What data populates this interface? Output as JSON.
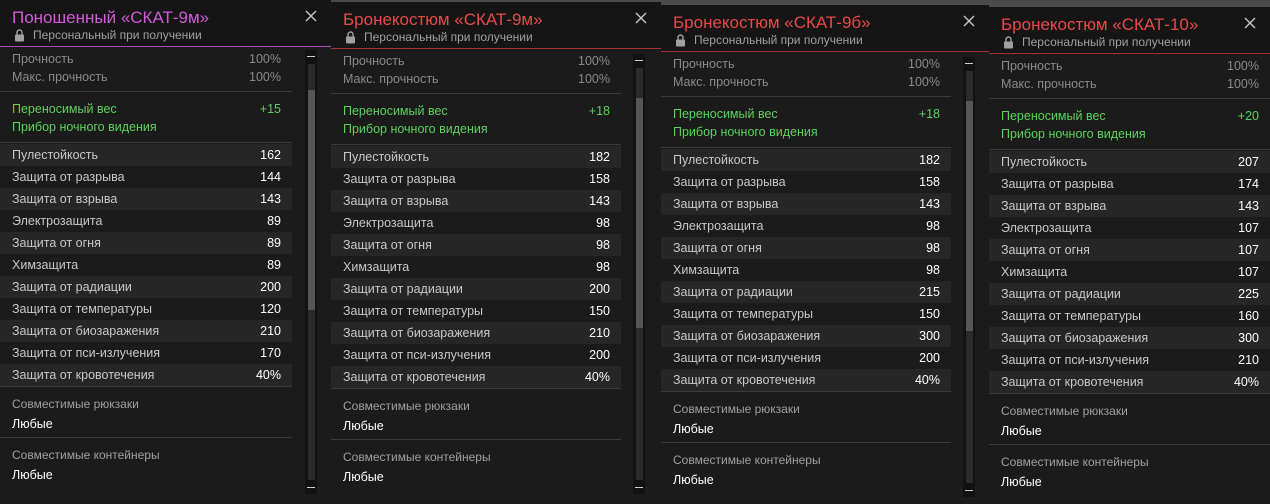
{
  "panels": [
    {
      "title": "Поношенный «СКАТ-9м»",
      "title_color": "#d35ad8",
      "accent_color": "#b04ab8",
      "subtitle": "Персональный при получении",
      "durability": [
        {
          "label": "Прочность",
          "value": "100%"
        },
        {
          "label": "Макс. прочность",
          "value": "100%"
        }
      ],
      "bonuses": [
        {
          "label": "Переносимый вес",
          "value": "+15"
        },
        {
          "label": "Прибор ночного видения",
          "value": ""
        }
      ],
      "stats": [
        {
          "label": "Пулестойкость",
          "value": "162"
        },
        {
          "label": "Защита от разрыва",
          "value": "144"
        },
        {
          "label": "Защита от взрыва",
          "value": "143"
        },
        {
          "label": "Электрозащита",
          "value": "89"
        },
        {
          "label": "Защита от огня",
          "value": "89"
        },
        {
          "label": "Химзащита",
          "value": "89"
        },
        {
          "label": "Защита от радиации",
          "value": "200"
        },
        {
          "label": "Защита от температуры",
          "value": "120"
        },
        {
          "label": "Защита от биозаражения",
          "value": "210"
        },
        {
          "label": "Защита от пси-излучения",
          "value": "170"
        },
        {
          "label": "Защита от кровотечения",
          "value": "40%"
        }
      ],
      "compat": [
        {
          "label": "Совместимые рюкзаки",
          "value": "Любые"
        },
        {
          "label": "Совместимые контейнеры",
          "value": "Любые"
        }
      ]
    },
    {
      "title": "Бронекостюм «СКАТ-9м»",
      "title_color": "#e84a4a",
      "accent_color": "#a03434",
      "subtitle": "Персональный при получении",
      "durability": [
        {
          "label": "Прочность",
          "value": "100%"
        },
        {
          "label": "Макс. прочность",
          "value": "100%"
        }
      ],
      "bonuses": [
        {
          "label": "Переносимый вес",
          "value": "+18"
        },
        {
          "label": "Прибор ночного видения",
          "value": ""
        }
      ],
      "stats": [
        {
          "label": "Пулестойкость",
          "value": "182"
        },
        {
          "label": "Защита от разрыва",
          "value": "158"
        },
        {
          "label": "Защита от взрыва",
          "value": "143"
        },
        {
          "label": "Электрозащита",
          "value": "98"
        },
        {
          "label": "Защита от огня",
          "value": "98"
        },
        {
          "label": "Химзащита",
          "value": "98"
        },
        {
          "label": "Защита от радиации",
          "value": "200"
        },
        {
          "label": "Защита от температуры",
          "value": "150"
        },
        {
          "label": "Защита от биозаражения",
          "value": "210"
        },
        {
          "label": "Защита от пси-излучения",
          "value": "200"
        },
        {
          "label": "Защита от кровотечения",
          "value": "40%"
        }
      ],
      "compat": [
        {
          "label": "Совместимые рюкзаки",
          "value": "Любые"
        },
        {
          "label": "Совместимые контейнеры",
          "value": "Любые"
        }
      ]
    },
    {
      "title": "Бронекостюм «СКАТ-9б»",
      "title_color": "#e84a4a",
      "accent_color": "#a03434",
      "subtitle": "Персональный при получении",
      "durability": [
        {
          "label": "Прочность",
          "value": "100%"
        },
        {
          "label": "Макс. прочность",
          "value": "100%"
        }
      ],
      "bonuses": [
        {
          "label": "Переносимый вес",
          "value": "+18"
        },
        {
          "label": "Прибор ночного видения",
          "value": ""
        }
      ],
      "stats": [
        {
          "label": "Пулестойкость",
          "value": "182"
        },
        {
          "label": "Защита от разрыва",
          "value": "158"
        },
        {
          "label": "Защита от взрыва",
          "value": "143"
        },
        {
          "label": "Электрозащита",
          "value": "98"
        },
        {
          "label": "Защита от огня",
          "value": "98"
        },
        {
          "label": "Химзащита",
          "value": "98"
        },
        {
          "label": "Защита от радиации",
          "value": "215"
        },
        {
          "label": "Защита от температуры",
          "value": "150"
        },
        {
          "label": "Защита от биозаражения",
          "value": "300"
        },
        {
          "label": "Защита от пси-излучения",
          "value": "200"
        },
        {
          "label": "Защита от кровотечения",
          "value": "40%"
        }
      ],
      "compat": [
        {
          "label": "Совместимые рюкзаки",
          "value": "Любые"
        },
        {
          "label": "Совместимые контейнеры",
          "value": "Любые"
        }
      ]
    },
    {
      "title": "Бронекостюм «СКАТ-10»",
      "title_color": "#e84a4a",
      "accent_color": "#a03434",
      "subtitle": "Персональный при получении",
      "durability": [
        {
          "label": "Прочность",
          "value": "100%"
        },
        {
          "label": "Макс. прочность",
          "value": "100%"
        }
      ],
      "bonuses": [
        {
          "label": "Переносимый вес",
          "value": "+20"
        },
        {
          "label": "Прибор ночного видения",
          "value": ""
        }
      ],
      "stats": [
        {
          "label": "Пулестойкость",
          "value": "207"
        },
        {
          "label": "Защита от разрыва",
          "value": "174"
        },
        {
          "label": "Защита от взрыва",
          "value": "143"
        },
        {
          "label": "Электрозащита",
          "value": "107"
        },
        {
          "label": "Защита от огня",
          "value": "107"
        },
        {
          "label": "Химзащита",
          "value": "107"
        },
        {
          "label": "Защита от радиации",
          "value": "225"
        },
        {
          "label": "Защита от температуры",
          "value": "160"
        },
        {
          "label": "Защита от биозаражения",
          "value": "300"
        },
        {
          "label": "Защита от пси-излучения",
          "value": "210"
        },
        {
          "label": "Защита от кровотечения",
          "value": "40%"
        }
      ],
      "compat": [
        {
          "label": "Совместимые рюкзаки",
          "value": "Любые"
        },
        {
          "label": "Совместимые контейнеры",
          "value": "Любые"
        }
      ]
    }
  ]
}
